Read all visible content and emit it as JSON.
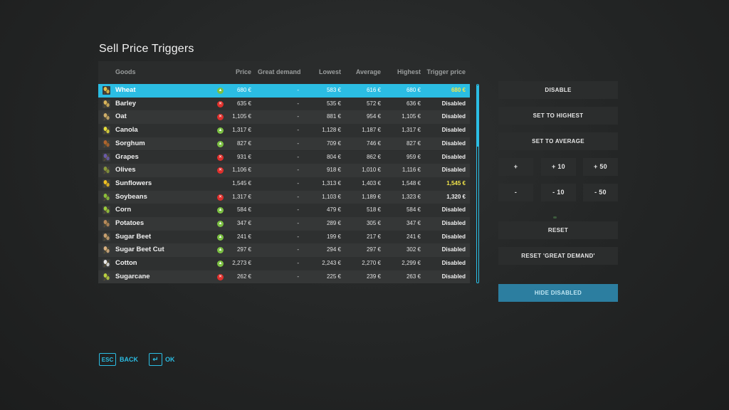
{
  "title": "Sell Price Triggers",
  "columns": {
    "goods": "Goods",
    "price": "Price",
    "great_demand": "Great demand",
    "lowest": "Lowest",
    "average": "Average",
    "highest": "Highest",
    "trigger": "Trigger price"
  },
  "rows": [
    {
      "name": "Wheat",
      "icon": "wheat-icon",
      "color": "#e8c24a",
      "trend": "up",
      "price": "680 €",
      "demand": "-",
      "lowest": "583 €",
      "average": "616 €",
      "highest": "680 €",
      "trigger": "680 €",
      "active": true
    },
    {
      "name": "Barley",
      "icon": "barley-icon",
      "color": "#d9b45a",
      "trend": "down",
      "price": "635 €",
      "demand": "-",
      "lowest": "535 €",
      "average": "572 €",
      "highest": "636 €",
      "trigger": "Disabled",
      "active": false
    },
    {
      "name": "Oat",
      "icon": "oat-icon",
      "color": "#cfae6a",
      "trend": "down",
      "price": "1,105 €",
      "demand": "-",
      "lowest": "881 €",
      "average": "954 €",
      "highest": "1,105 €",
      "trigger": "Disabled",
      "active": false
    },
    {
      "name": "Canola",
      "icon": "canola-icon",
      "color": "#e6de3c",
      "trend": "up",
      "price": "1,317 €",
      "demand": "-",
      "lowest": "1,128 €",
      "average": "1,187 €",
      "highest": "1,317 €",
      "trigger": "Disabled",
      "active": false
    },
    {
      "name": "Sorghum",
      "icon": "sorghum-icon",
      "color": "#b0642c",
      "trend": "up",
      "price": "827 €",
      "demand": "-",
      "lowest": "709 €",
      "average": "746 €",
      "highest": "827 €",
      "trigger": "Disabled",
      "active": false
    },
    {
      "name": "Grapes",
      "icon": "grapes-icon",
      "color": "#6a5aa8",
      "trend": "down",
      "price": "931 €",
      "demand": "-",
      "lowest": "804 €",
      "average": "862 €",
      "highest": "959 €",
      "trigger": "Disabled",
      "active": false
    },
    {
      "name": "Olives",
      "icon": "olives-icon",
      "color": "#8a9a3c",
      "trend": "down",
      "price": "1,106 €",
      "demand": "-",
      "lowest": "918 €",
      "average": "1,010 €",
      "highest": "1,116 €",
      "trigger": "Disabled",
      "active": false
    },
    {
      "name": "Sunflowers",
      "icon": "sunflower-icon",
      "color": "#f0c020",
      "trend": "none",
      "price": "1,545 €",
      "demand": "-",
      "lowest": "1,313 €",
      "average": "1,403 €",
      "highest": "1,548 €",
      "trigger": "1,545 €",
      "active": true
    },
    {
      "name": "Soybeans",
      "icon": "soybeans-icon",
      "color": "#8bbf3a",
      "trend": "down",
      "price": "1,317 €",
      "demand": "-",
      "lowest": "1,103 €",
      "average": "1,189 €",
      "highest": "1,323 €",
      "trigger": "1,320 €",
      "active": false
    },
    {
      "name": "Corn",
      "icon": "corn-icon",
      "color": "#9ccc3c",
      "trend": "up",
      "price": "584 €",
      "demand": "-",
      "lowest": "479 €",
      "average": "518 €",
      "highest": "584 €",
      "trigger": "Disabled",
      "active": false
    },
    {
      "name": "Potatoes",
      "icon": "potato-icon",
      "color": "#b88a5a",
      "trend": "up",
      "price": "347 €",
      "demand": "-",
      "lowest": "289 €",
      "average": "305 €",
      "highest": "347 €",
      "trigger": "Disabled",
      "active": false
    },
    {
      "name": "Sugar Beet",
      "icon": "sugar-beet-icon",
      "color": "#c8a070",
      "trend": "up",
      "price": "241 €",
      "demand": "-",
      "lowest": "199 €",
      "average": "217 €",
      "highest": "241 €",
      "trigger": "Disabled",
      "active": false
    },
    {
      "name": "Sugar Beet Cut",
      "icon": "sugar-beet-cut-icon",
      "color": "#d8b080",
      "trend": "up",
      "price": "297 €",
      "demand": "-",
      "lowest": "294 €",
      "average": "297 €",
      "highest": "302 €",
      "trigger": "Disabled",
      "active": false
    },
    {
      "name": "Cotton",
      "icon": "cotton-icon",
      "color": "#e8e8e8",
      "trend": "up",
      "price": "2,273 €",
      "demand": "-",
      "lowest": "2,243 €",
      "average": "2,270 €",
      "highest": "2,299 €",
      "trigger": "Disabled",
      "active": false
    },
    {
      "name": "Sugarcane",
      "icon": "sugarcane-icon",
      "color": "#b8d040",
      "trend": "down",
      "price": "262 €",
      "demand": "-",
      "lowest": "225 €",
      "average": "239 €",
      "highest": "263 €",
      "trigger": "Disabled",
      "active": false
    }
  ],
  "selected_index": 0,
  "scroll_fraction_visible": 0.31,
  "buttons": {
    "disable": "DISABLE",
    "set_highest": "SET TO HIGHEST",
    "set_average": "SET TO AVERAGE",
    "plus": "+",
    "plus10": "+ 10",
    "plus50": "+ 50",
    "minus": "-",
    "minus10": "- 10",
    "minus50": "- 50",
    "reset": "RESET",
    "reset_demand": "RESET 'GREAT DEMAND'",
    "hide_disabled": "HIDE DISABLED"
  },
  "footer": {
    "esc_key": "ESC",
    "back": "BACK",
    "enter_key": "↵",
    "ok": "OK"
  },
  "colors": {
    "accent": "#2bbde3",
    "trigger_active": "#f3e64a",
    "up": "#7cc043",
    "down": "#e0302c"
  }
}
